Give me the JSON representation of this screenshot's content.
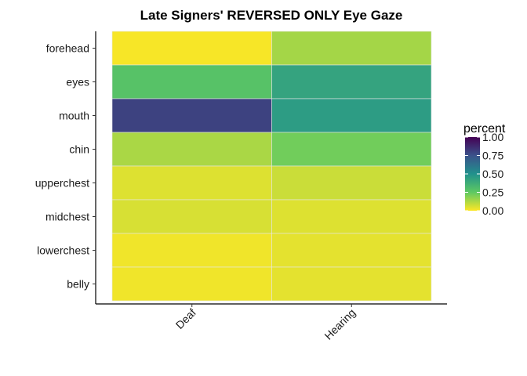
{
  "chart_data": {
    "type": "heatmap",
    "title": "Late Signers' REVERSED ONLY Eye Gaze",
    "xlabel": "",
    "ylabel": "",
    "x_categories": [
      "Deaf",
      "Hearing"
    ],
    "y_categories": [
      "forehead",
      "eyes",
      "mouth",
      "chin",
      "upperchest",
      "midchest",
      "lowerchest",
      "belly"
    ],
    "values": [
      [
        0.01,
        0.14
      ],
      [
        0.28,
        0.42
      ],
      [
        0.8,
        0.45
      ],
      [
        0.13,
        0.22
      ],
      [
        0.05,
        0.08
      ],
      [
        0.06,
        0.05
      ],
      [
        0.02,
        0.04
      ],
      [
        0.02,
        0.04
      ]
    ],
    "color_scale": "viridis-reversed",
    "legend": {
      "title": "percent",
      "ticks": [
        "0.00",
        "0.25",
        "0.50",
        "0.75",
        "1.00"
      ],
      "range": [
        0,
        1
      ],
      "placement": "right"
    },
    "grid": false
  }
}
